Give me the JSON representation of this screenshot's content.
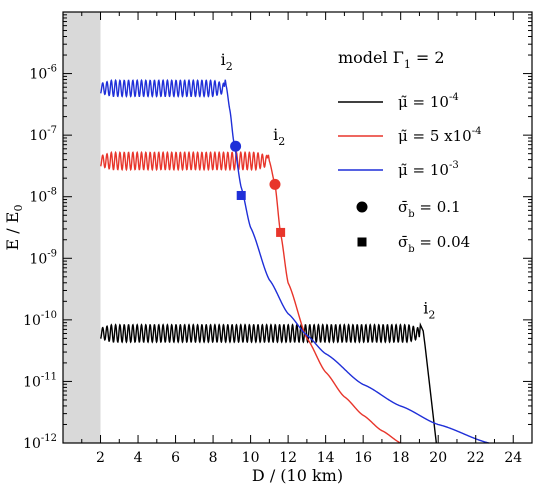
{
  "chart_data": {
    "type": "line",
    "xlabel": "D / (10 km)",
    "ylabel": "E / E",
    "ylabel_sub": "0",
    "xlim": [
      0,
      25
    ],
    "ylim_log10": [
      -12,
      -5
    ],
    "y_scale": "log",
    "grid": false,
    "legend_position": "right",
    "shaded_region": {
      "x_from": 0,
      "x_to": 2,
      "color": "#d9d9d9"
    },
    "x_ticks": [
      "2",
      "4",
      "6",
      "8",
      "10",
      "12",
      "14",
      "16",
      "18",
      "20",
      "22",
      "24"
    ],
    "x_tick_values": [
      2,
      4,
      6,
      8,
      10,
      12,
      14,
      16,
      18,
      20,
      22,
      24
    ],
    "y_ticks": [
      {
        "base": "10",
        "exp": "-6",
        "value": -6
      },
      {
        "base": "10",
        "exp": "-7",
        "value": -7
      },
      {
        "base": "10",
        "exp": "-8",
        "value": -8
      },
      {
        "base": "10",
        "exp": "-9",
        "value": -9
      },
      {
        "base": "10",
        "exp": "-10",
        "value": -10
      },
      {
        "base": "10",
        "exp": "-11",
        "value": -11
      },
      {
        "base": "10",
        "exp": "-12",
        "value": -12
      }
    ],
    "legend_title": {
      "main": "model Γ",
      "sub": "1",
      "tail": " = 2"
    },
    "series": [
      {
        "name": "10-4",
        "color": "#000000",
        "legend": {
          "symbol": "μ̃",
          "main": " = 10",
          "sup": "-4"
        },
        "plateau_log": -10.22,
        "osc_amp": 0.14,
        "osc_period": 0.23,
        "x_start": 2.0,
        "x_i2": 19.0,
        "x_end": 19.9,
        "decay": "cliff",
        "peak_log": -10.08,
        "end_log": -12.0
      },
      {
        "name": "5 x10-4",
        "color": "#e8352b",
        "legend": {
          "symbol": "μ̃",
          "main": " = 5 x10",
          "sup": "-4"
        },
        "plateau_log": -7.42,
        "osc_amp": 0.14,
        "osc_period": 0.23,
        "x_start": 2.0,
        "x_i2": 10.9,
        "x_end": 18.0,
        "decay": "curve",
        "peak_log": -7.32,
        "knee_x": 11.3,
        "samples": [
          [
            11.0,
            -7.42
          ],
          [
            11.3,
            -7.8
          ],
          [
            11.6,
            -8.6
          ],
          [
            12.0,
            -9.4
          ],
          [
            13.0,
            -10.3
          ],
          [
            14.0,
            -10.85
          ],
          [
            15.0,
            -11.25
          ],
          [
            16.0,
            -11.55
          ],
          [
            17.0,
            -11.8
          ],
          [
            18.0,
            -12.0
          ]
        ]
      },
      {
        "name": "10-3",
        "color": "#1f2fd8",
        "legend": {
          "symbol": "μ̃",
          "main": " = 10",
          "sup": "-3"
        },
        "plateau_log": -6.24,
        "osc_amp": 0.13,
        "osc_period": 0.23,
        "x_start": 2.0,
        "x_i2": 8.6,
        "x_end": 22.7,
        "decay": "curve",
        "peak_log": -6.1,
        "samples": [
          [
            8.7,
            -6.2
          ],
          [
            8.9,
            -6.6
          ],
          [
            9.1,
            -7.1
          ],
          [
            9.5,
            -7.85
          ],
          [
            10.0,
            -8.5
          ],
          [
            11.0,
            -9.35
          ],
          [
            12.0,
            -9.9
          ],
          [
            13.0,
            -10.25
          ],
          [
            14.0,
            -10.55
          ],
          [
            16.0,
            -11.05
          ],
          [
            18.0,
            -11.4
          ],
          [
            20.0,
            -11.7
          ],
          [
            22.7,
            -12.0
          ]
        ]
      }
    ],
    "markers": [
      {
        "series": "10-3",
        "shape": "circle",
        "x": 9.2,
        "y_log": -7.18
      },
      {
        "series": "10-3",
        "shape": "square",
        "x": 9.5,
        "y_log": -7.98
      },
      {
        "series": "5 x10-4",
        "shape": "circle",
        "x": 11.3,
        "y_log": -7.8
      },
      {
        "series": "5 x10-4",
        "shape": "square",
        "x": 11.6,
        "y_log": -8.58
      }
    ],
    "marker_legend": [
      {
        "shape": "circle",
        "symbol": "σ̄",
        "sub": "b",
        "tail": " = 0.1"
      },
      {
        "shape": "square",
        "symbol": "σ̄",
        "sub": "b",
        "tail": " = 0.04"
      }
    ],
    "annotations": [
      {
        "text": "i",
        "sub": "2",
        "x": 8.4,
        "y_log": -5.86
      },
      {
        "text": "i",
        "sub": "2",
        "x": 11.2,
        "y_log": -7.08
      },
      {
        "text": "i",
        "sub": "2",
        "x": 19.2,
        "y_log": -9.9
      }
    ]
  }
}
